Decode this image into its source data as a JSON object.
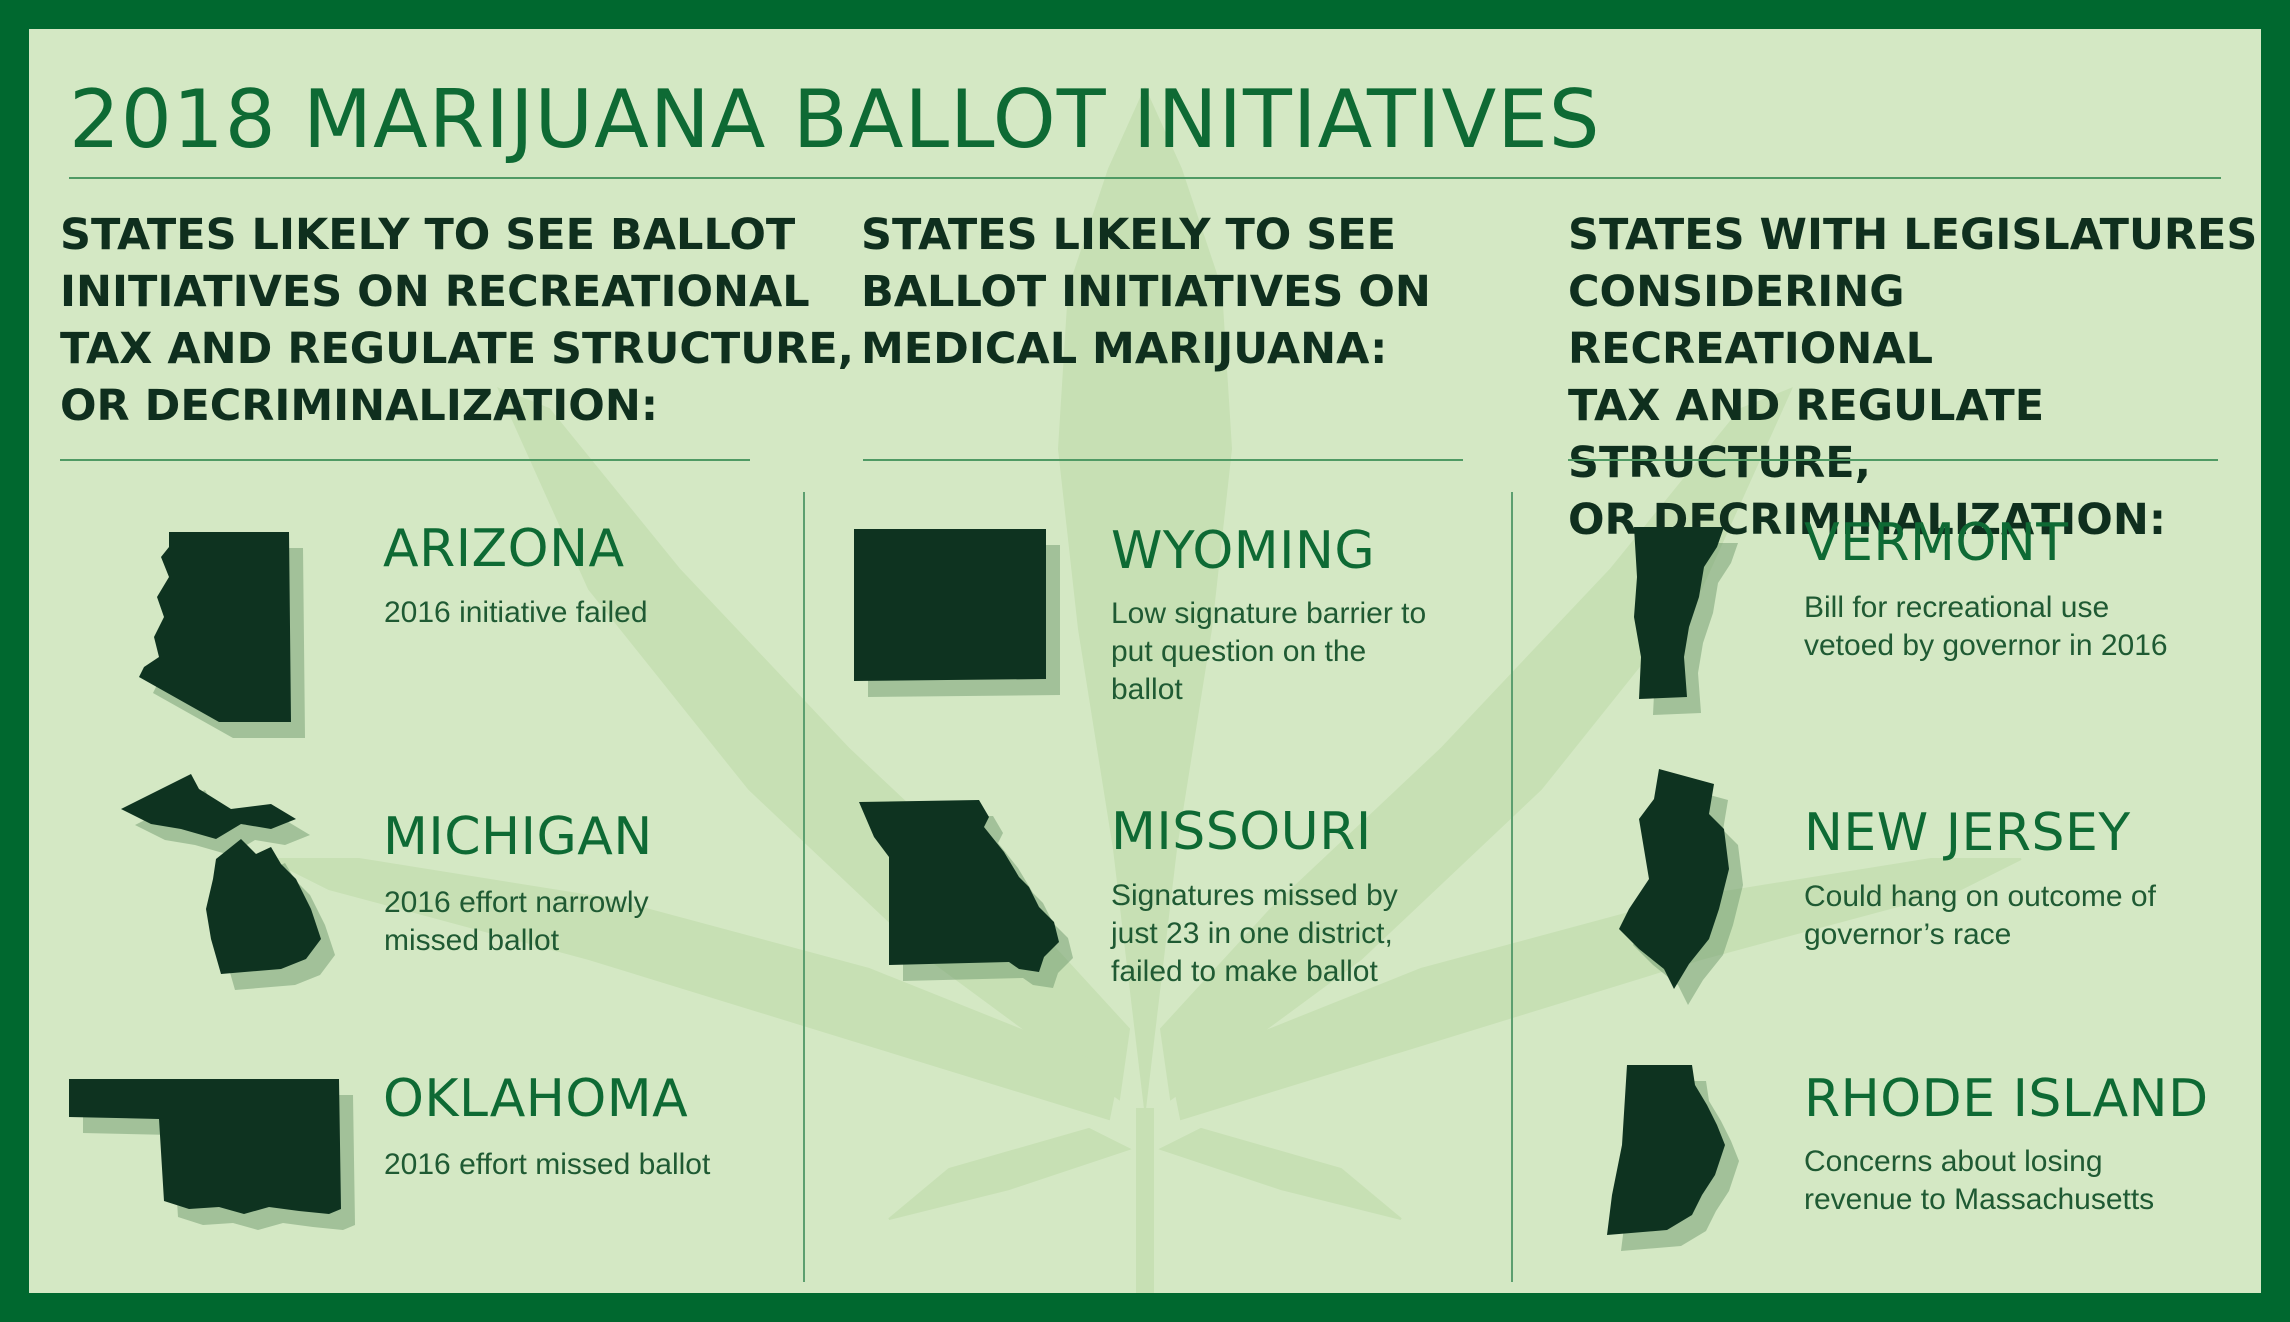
{
  "title": "2018 MARIJUANA BALLOT INITIATIVES",
  "colors": {
    "border": "#00682f",
    "background": "#d4e8c4",
    "state_fill": "#0e3320",
    "title": "#0e6a34"
  },
  "columns": [
    {
      "heading": [
        "STATES LIKELY TO SEE BALLOT",
        "INITIATIVES ON RECREATIONAL",
        "TAX AND REGULATE STRUCTURE,",
        "OR DECRIMINALIZATION:"
      ],
      "states": [
        {
          "name": "ARIZONA",
          "icon": "arizona-map-icon",
          "desc": [
            "2016 initiative failed"
          ]
        },
        {
          "name": "MICHIGAN",
          "icon": "michigan-map-icon",
          "desc": [
            "2016 effort narrowly",
            "missed ballot"
          ]
        },
        {
          "name": "OKLAHOMA",
          "icon": "oklahoma-map-icon",
          "desc": [
            "2016 effort missed ballot"
          ]
        }
      ]
    },
    {
      "heading": [
        "STATES LIKELY TO SEE",
        "BALLOT INITIATIVES ON",
        "MEDICAL MARIJUANA:"
      ],
      "states": [
        {
          "name": "WYOMING",
          "icon": "wyoming-map-icon",
          "desc": [
            "Low signature barrier to",
            "put question on the",
            "ballot"
          ]
        },
        {
          "name": "MISSOURI",
          "icon": "missouri-map-icon",
          "desc": [
            "Signatures missed by",
            "just 23 in one district,",
            "failed to make ballot"
          ]
        }
      ]
    },
    {
      "heading": [
        "STATES WITH LEGISLATURES",
        "CONSIDERING RECREATIONAL",
        "TAX AND REGULATE STRUCTURE,",
        "OR DECRIMINALIZATION:"
      ],
      "states": [
        {
          "name": "VERMONT",
          "icon": "vermont-map-icon",
          "desc": [
            "Bill for recreational use",
            "vetoed by governor in 2016"
          ]
        },
        {
          "name": "NEW JERSEY",
          "icon": "new-jersey-map-icon",
          "desc": [
            "Could hang on outcome of",
            "governor’s race"
          ]
        },
        {
          "name": "RHODE ISLAND",
          "icon": "rhode-island-map-icon",
          "desc": [
            "Concerns about losing",
            "revenue to Massachusetts"
          ]
        }
      ]
    }
  ]
}
